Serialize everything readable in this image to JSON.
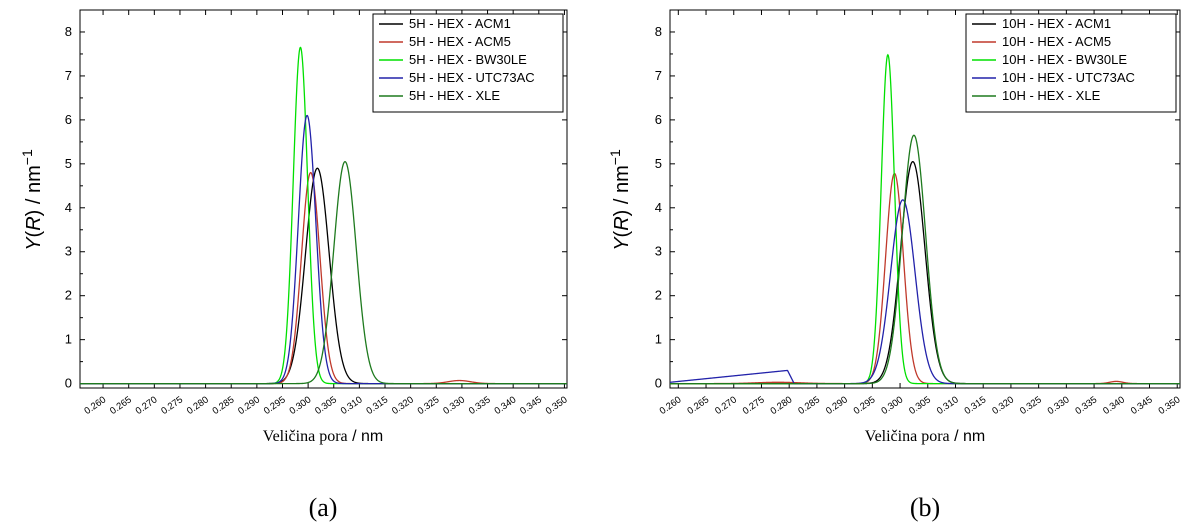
{
  "panels": [
    {
      "caption": "(a)",
      "ylabel_func": "Y",
      "ylabel_var": "R",
      "ylabel_unit": " / nm",
      "ylabel_exp": "−1",
      "xlabel_text": "Veličina pora",
      "xlabel_unit": " / nm"
    },
    {
      "caption": "(b)",
      "ylabel_func": "Y",
      "ylabel_var": "R",
      "ylabel_unit": " / nm",
      "ylabel_exp": "−1",
      "xlabel_text": "Veličina pora",
      "xlabel_unit": " / nm"
    }
  ],
  "chart_data": [
    {
      "type": "line",
      "title": "",
      "xlabel": "Veličina pora / nm",
      "ylabel": "Y(R) / nm−1",
      "xlim": [
        0.2555,
        0.3505
      ],
      "ylim": [
        -0.1,
        8.5
      ],
      "xticks": [
        0.26,
        0.265,
        0.27,
        0.275,
        0.28,
        0.285,
        0.29,
        0.295,
        0.3,
        0.305,
        0.31,
        0.315,
        0.32,
        0.325,
        0.33,
        0.335,
        0.34,
        0.345,
        0.35
      ],
      "xtick_labels": [
        "0.260",
        "0.265",
        "0.270",
        "0.275",
        "0.280",
        "0.285",
        "0.290",
        "0.295",
        "0.300",
        "0.305",
        "0.310",
        "0.315",
        "0.320",
        "0.325",
        "0.330",
        "0.335",
        "0.340",
        "0.345",
        "0.350"
      ],
      "yticks": [
        0,
        1,
        2,
        3,
        4,
        5,
        6,
        7,
        8
      ],
      "ytick_labels": [
        "0",
        "1",
        "2",
        "3",
        "4",
        "5",
        "6",
        "7",
        "8"
      ],
      "legend_position": "top-right",
      "grid": false,
      "series": [
        {
          "name": "5H - HEX - ACM1",
          "color": "#000000",
          "peaks": [
            {
              "center": 0.3018,
              "height": 4.9,
              "sigma": 0.0023
            }
          ]
        },
        {
          "name": "5H - HEX - ACM5",
          "color": "#c0392b",
          "peaks": [
            {
              "center": 0.3005,
              "height": 4.8,
              "sigma": 0.0018
            },
            {
              "center": 0.3295,
              "height": 0.07,
              "sigma": 0.0022
            }
          ]
        },
        {
          "name": "5H - HEX - BW30LE",
          "color": "#00e000",
          "peaks": [
            {
              "center": 0.2985,
              "height": 7.65,
              "sigma": 0.0014
            }
          ]
        },
        {
          "name": "5H - HEX - UTC73AC",
          "color": "#2222aa",
          "peaks": [
            {
              "center": 0.2998,
              "height": 6.1,
              "sigma": 0.0017
            }
          ]
        },
        {
          "name": "5H - HEX - XLE",
          "color": "#1e7a1e",
          "peaks": [
            {
              "center": 0.3072,
              "height": 5.05,
              "sigma": 0.0022
            }
          ]
        }
      ]
    },
    {
      "type": "line",
      "title": "",
      "xlabel": "Veličina pora / nm",
      "ylabel": "Y(R) / nm−1",
      "xlim": [
        0.2585,
        0.3505
      ],
      "ylim": [
        -0.1,
        8.5
      ],
      "xticks": [
        0.26,
        0.265,
        0.27,
        0.275,
        0.28,
        0.285,
        0.29,
        0.295,
        0.3,
        0.305,
        0.31,
        0.315,
        0.32,
        0.325,
        0.33,
        0.335,
        0.34,
        0.345,
        0.35
      ],
      "xtick_labels": [
        "0.260",
        "0.265",
        "0.270",
        "0.275",
        "0.280",
        "0.285",
        "0.290",
        "0.295",
        "0.300",
        "0.305",
        "0.310",
        "0.315",
        "0.320",
        "0.325",
        "0.330",
        "0.335",
        "0.340",
        "0.345",
        "0.350"
      ],
      "yticks": [
        0,
        1,
        2,
        3,
        4,
        5,
        6,
        7,
        8
      ],
      "ytick_labels": [
        "0",
        "1",
        "2",
        "3",
        "4",
        "5",
        "6",
        "7",
        "8"
      ],
      "legend_position": "top-right",
      "grid": false,
      "series": [
        {
          "name": "10H - HEX - ACM1",
          "color": "#000000",
          "peaks": [
            {
              "center": 0.3023,
              "height": 5.05,
              "sigma": 0.0022
            }
          ]
        },
        {
          "name": "10H - HEX - ACM5",
          "color": "#c0392b",
          "peaks": [
            {
              "center": 0.299,
              "height": 4.78,
              "sigma": 0.0016
            },
            {
              "center": 0.339,
              "height": 0.05,
              "sigma": 0.0012
            },
            {
              "center": 0.278,
              "height": 0.03,
              "sigma": 0.004
            }
          ]
        },
        {
          "name": "10H - HEX - BW30LE",
          "color": "#00e000",
          "peaks": [
            {
              "center": 0.2978,
              "height": 7.48,
              "sigma": 0.0012
            }
          ]
        },
        {
          "name": "10H - HEX - UTC73AC",
          "color": "#2222aa",
          "peaks": [
            {
              "center": 0.3005,
              "height": 4.18,
              "sigma": 0.0022
            }
          ],
          "ramp": {
            "x_start": 0.2585,
            "x_end": 0.2797,
            "y_start": 0.03,
            "y_end": 0.3
          }
        },
        {
          "name": "10H - HEX - XLE",
          "color": "#1e7a1e",
          "peaks": [
            {
              "center": 0.3025,
              "height": 5.65,
              "sigma": 0.0021
            }
          ]
        }
      ]
    }
  ]
}
